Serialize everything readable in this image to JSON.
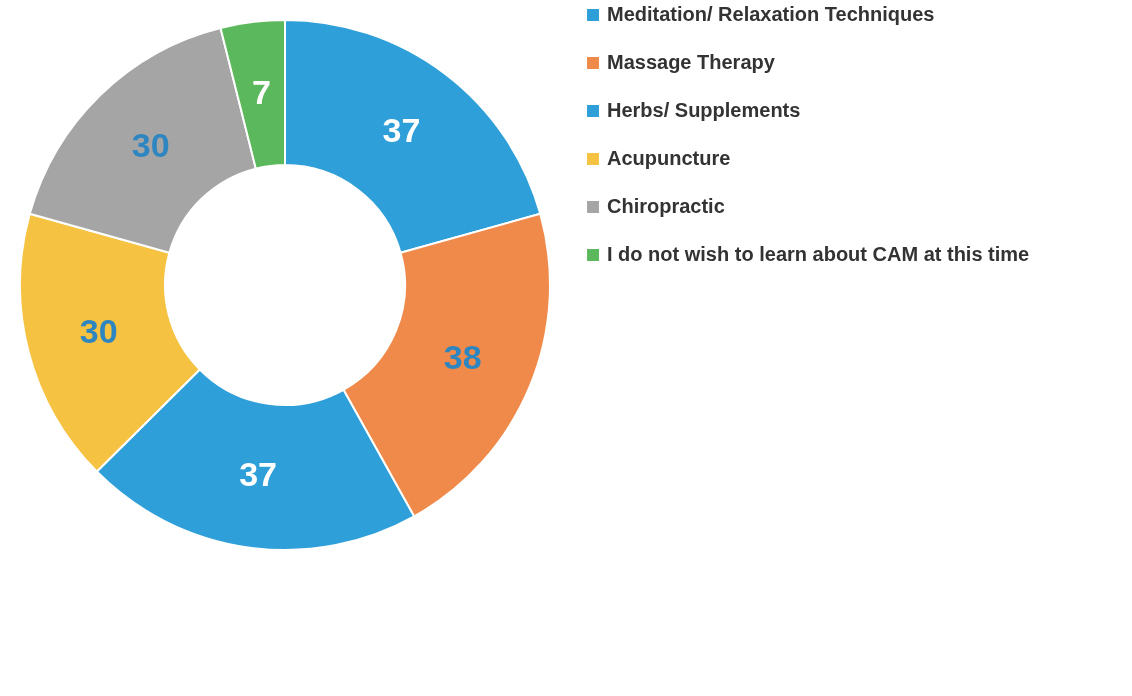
{
  "chart_data": {
    "type": "donut",
    "categories": [
      "Meditation/ Relaxation Techniques",
      "Massage Therapy",
      "Herbs/ Supplements",
      "Acupuncture",
      "Chiropractic",
      "I do not wish to learn about CAM at this time"
    ],
    "values": [
      37,
      38,
      37,
      30,
      30,
      7
    ],
    "colors": [
      "#2e9fd8",
      "#f08a4b",
      "#2e9fd8",
      "#f5c242",
      "#a5a5a5",
      "#5cb85c"
    ],
    "data_labels": true,
    "legend": "right"
  }
}
